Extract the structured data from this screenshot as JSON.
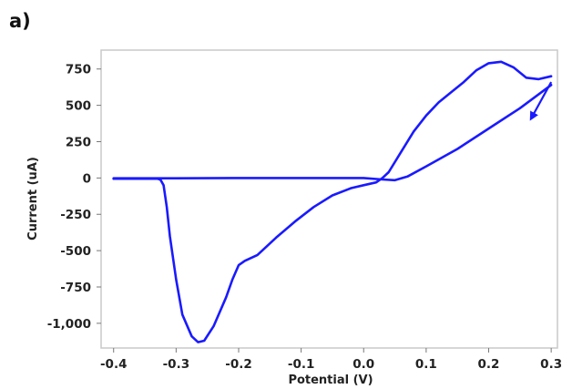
{
  "panel_label": "a)",
  "chart_data": {
    "type": "line",
    "title": "",
    "xlabel": "Potential (V)",
    "ylabel": "Current (uA)",
    "xlim": [
      -0.42,
      0.31
    ],
    "ylim": [
      -1170,
      880
    ],
    "x_ticks": [
      {
        "value": -0.4,
        "label": "-0.4"
      },
      {
        "value": -0.3,
        "label": "-0.3"
      },
      {
        "value": -0.2,
        "label": "-0.2"
      },
      {
        "value": -0.1,
        "label": "-0.1"
      },
      {
        "value": 0.0,
        "label": "0.0"
      },
      {
        "value": 0.1,
        "label": "0.1"
      },
      {
        "value": 0.2,
        "label": "0.2"
      },
      {
        "value": 0.3,
        "label": "0.3"
      }
    ],
    "y_ticks": [
      {
        "value": 750,
        "label": "750"
      },
      {
        "value": 500,
        "label": "500"
      },
      {
        "value": 250,
        "label": "250"
      },
      {
        "value": 0,
        "label": "0"
      },
      {
        "value": -250,
        "label": "-250"
      },
      {
        "value": -500,
        "label": "-500"
      },
      {
        "value": -750,
        "label": "-750"
      },
      {
        "value": -1000,
        "label": "-1,000"
      }
    ],
    "grid": false,
    "legend": "none",
    "series": [
      {
        "color": "#1a1aff",
        "x": [
          0.3,
          0.28,
          0.26,
          0.24,
          0.22,
          0.2,
          0.18,
          0.16,
          0.14,
          0.12,
          0.1,
          0.08,
          0.06,
          0.04,
          0.03,
          0.02,
          0.0,
          -0.02,
          -0.05,
          -0.08,
          -0.11,
          -0.14,
          -0.17,
          -0.19,
          -0.2,
          -0.21,
          -0.22,
          -0.24,
          -0.255,
          -0.265,
          -0.275,
          -0.29,
          -0.3,
          -0.31,
          -0.315,
          -0.32,
          -0.325,
          -0.33,
          -0.34,
          -0.36,
          -0.4
        ],
        "y": [
          700,
          680,
          690,
          760,
          800,
          790,
          740,
          660,
          590,
          520,
          430,
          320,
          180,
          40,
          0,
          -30,
          -50,
          -70,
          -120,
          -200,
          -300,
          -410,
          -530,
          -570,
          -600,
          -700,
          -820,
          -1020,
          -1120,
          -1130,
          -1090,
          -940,
          -700,
          -400,
          -200,
          -50,
          -12,
          -5,
          -5,
          -5,
          -5
        ]
      },
      {
        "color": "#1a1aff",
        "x": [
          -0.4,
          -0.3,
          -0.2,
          -0.1,
          0.0,
          0.03,
          0.05,
          0.07,
          0.1,
          0.15,
          0.2,
          0.25,
          0.3
        ],
        "y": [
          -2,
          -2,
          0,
          0,
          0,
          -10,
          -15,
          10,
          80,
          200,
          340,
          480,
          640
        ]
      }
    ],
    "annotations": [
      {
        "type": "arrow",
        "color": "#1a1aff",
        "from": [
          0.3,
          660
        ],
        "to": [
          0.268,
          410
        ]
      }
    ]
  }
}
